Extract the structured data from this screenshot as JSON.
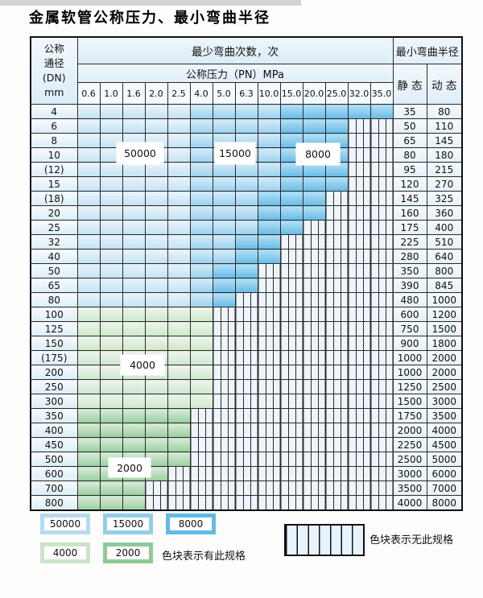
{
  "title": "金属软管公称压力、最小弯曲半径",
  "table": {
    "corner": "公称\n通径\n(DN)\nmm",
    "bend_header": "最少弯曲次数，次",
    "pressure_header": "公称压力（PN）MPa",
    "radius_header": "最小弯曲半径",
    "static_label": "静 态",
    "dynamic_label": "动 态",
    "pressure_columns": [
      "0.6",
      "1.0",
      "1.6",
      "2.0",
      "2.5",
      "4.0",
      "5.0",
      "6.3",
      "10.0",
      "15.0",
      "20.0",
      "25.0",
      "32.0",
      "35.0"
    ],
    "rows": [
      {
        "dn": "4",
        "static": "35",
        "dynamic": "80",
        "band": "blue",
        "end": 13,
        "dark_from": 9
      },
      {
        "dn": "6",
        "static": "50",
        "dynamic": "110",
        "band": "blue",
        "end": 11,
        "dark_from": 9
      },
      {
        "dn": "8",
        "static": "65",
        "dynamic": "145",
        "band": "blue",
        "end": 11,
        "dark_from": 9
      },
      {
        "dn": "10",
        "static": "80",
        "dynamic": "180",
        "band": "blue",
        "end": 11,
        "dark_from": 9
      },
      {
        "dn": "(12)",
        "static": "95",
        "dynamic": "215",
        "band": "blue",
        "end": 11,
        "dark_from": 9
      },
      {
        "dn": "15",
        "static": "120",
        "dynamic": "270",
        "band": "blue",
        "end": 11,
        "dark_from": 9
      },
      {
        "dn": "(18)",
        "static": "145",
        "dynamic": "325",
        "band": "blue",
        "end": 10,
        "dark_from": 8
      },
      {
        "dn": "20",
        "static": "160",
        "dynamic": "360",
        "band": "blue",
        "end": 10,
        "dark_from": 8
      },
      {
        "dn": "25",
        "static": "175",
        "dynamic": "400",
        "band": "blue",
        "end": 9,
        "dark_from": 8
      },
      {
        "dn": "32",
        "static": "225",
        "dynamic": "510",
        "band": "blue",
        "end": 8,
        "dark_from": 7
      },
      {
        "dn": "40",
        "static": "280",
        "dynamic": "640",
        "band": "blue",
        "end": 8,
        "dark_from": 7
      },
      {
        "dn": "50",
        "static": "350",
        "dynamic": "800",
        "band": "blue",
        "end": 7,
        "dark_from": 6
      },
      {
        "dn": "65",
        "static": "390",
        "dynamic": "845",
        "band": "blue",
        "end": 7,
        "dark_from": 6
      },
      {
        "dn": "80",
        "static": "480",
        "dynamic": "1000",
        "band": "blue",
        "end": 6,
        "dark_from": 6
      },
      {
        "dn": "100",
        "static": "600",
        "dynamic": "1200",
        "band": "green4000",
        "end": 5
      },
      {
        "dn": "125",
        "static": "750",
        "dynamic": "1500",
        "band": "green4000",
        "end": 5
      },
      {
        "dn": "150",
        "static": "900",
        "dynamic": "1800",
        "band": "green4000",
        "end": 5
      },
      {
        "dn": "(175)",
        "static": "1000",
        "dynamic": "2000",
        "band": "green4000",
        "end": 5
      },
      {
        "dn": "200",
        "static": "1000",
        "dynamic": "2000",
        "band": "green4000",
        "end": 5
      },
      {
        "dn": "250",
        "static": "1250",
        "dynamic": "2500",
        "band": "green4000",
        "end": 5
      },
      {
        "dn": "300",
        "static": "1500",
        "dynamic": "3000",
        "band": "green4000",
        "end": 5
      },
      {
        "dn": "350",
        "static": "1750",
        "dynamic": "3500",
        "band": "green2000",
        "end": 4
      },
      {
        "dn": "400",
        "static": "2000",
        "dynamic": "4000",
        "band": "green2000",
        "end": 4
      },
      {
        "dn": "450",
        "static": "2250",
        "dynamic": "4500",
        "band": "green2000",
        "end": 4
      },
      {
        "dn": "500",
        "static": "2500",
        "dynamic": "5000",
        "band": "green2000",
        "end": 4
      },
      {
        "dn": "600",
        "static": "3000",
        "dynamic": "6000",
        "band": "green2000",
        "end": 3
      },
      {
        "dn": "700",
        "static": "3500",
        "dynamic": "7000",
        "band": "green2000",
        "end": 2
      },
      {
        "dn": "800",
        "static": "4000",
        "dynamic": "8000",
        "band": "green2000",
        "end": 2
      }
    ]
  },
  "overlays": {
    "b50000": "50000",
    "b15000": "15000",
    "b8000": "8000",
    "g4000": "4000",
    "g2000": "2000"
  },
  "legend": {
    "items": [
      {
        "label": "50000",
        "color": "#b3dcf2",
        "row": 1
      },
      {
        "label": "15000",
        "color": "#93cdee",
        "row": 1
      },
      {
        "label": "8000",
        "color": "#62bae5",
        "row": 1
      },
      {
        "label": "4000",
        "color": "#cbe4c9",
        "row": 2
      },
      {
        "label": "2000",
        "color": "#8fca96",
        "row": 2
      }
    ],
    "has_spec_note": "色块表示有此规格",
    "no_spec_note": "色块表示无此规格"
  },
  "colors": {
    "bend_50000": "#c3e2f3",
    "bend_15000": "#9bd1ee",
    "bend_8000": "#67bce7",
    "bend_4000": "#cfe7cd",
    "bend_2000": "#9bcfa0",
    "no_spec_stripe_bg": "#edf4fb",
    "grid_line": "#2b2b2b"
  }
}
